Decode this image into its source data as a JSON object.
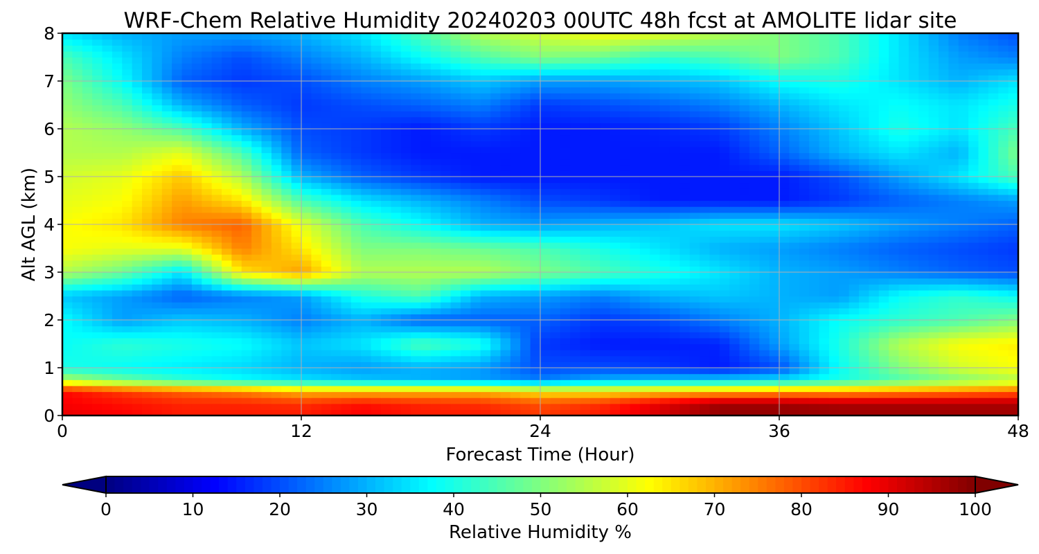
{
  "chart_data": {
    "type": "heatmap",
    "title": "WRF-Chem Relative Humidity 20240203 00UTC 48h fcst at AMOLITE lidar site",
    "xlabel": "Forecast Time (Hour)",
    "ylabel": "Alt AGL (km)",
    "xlim": [
      0,
      48
    ],
    "ylim": [
      0,
      8
    ],
    "xticks": [
      0,
      12,
      24,
      36,
      48
    ],
    "yticks": [
      0,
      1,
      2,
      3,
      4,
      5,
      6,
      7,
      8
    ],
    "grid": true,
    "colormap": "jet",
    "colorbar": {
      "label": "Relative Humidity %",
      "orientation": "horizontal",
      "range": [
        0,
        100
      ],
      "ticks": [
        0,
        10,
        20,
        30,
        40,
        50,
        60,
        70,
        80,
        90,
        100
      ],
      "extend": "both"
    },
    "x": [
      0,
      3,
      6,
      9,
      12,
      15,
      18,
      21,
      24,
      27,
      30,
      33,
      36,
      39,
      42,
      45,
      48
    ],
    "y": [
      0,
      0.25,
      0.5,
      0.75,
      1,
      1.5,
      2,
      2.5,
      3,
      3.5,
      4,
      4.5,
      5,
      5.5,
      6,
      6.5,
      7,
      7.5,
      8
    ],
    "z": [
      [
        90,
        88,
        85,
        85,
        85,
        88,
        85,
        85,
        82,
        85,
        92,
        98,
        98,
        97,
        97,
        97,
        97
      ],
      [
        88,
        86,
        84,
        84,
        83,
        86,
        84,
        83,
        80,
        83,
        90,
        97,
        97,
        96,
        96,
        96,
        96
      ],
      [
        87,
        82,
        78,
        75,
        70,
        70,
        70,
        70,
        65,
        65,
        68,
        70,
        72,
        72,
        74,
        76,
        78
      ],
      [
        55,
        48,
        42,
        38,
        35,
        32,
        30,
        28,
        25,
        30,
        32,
        33,
        35,
        40,
        45,
        50,
        55
      ],
      [
        40,
        38,
        36,
        34,
        30,
        28,
        30,
        28,
        20,
        20,
        18,
        15,
        20,
        38,
        50,
        58,
        62
      ],
      [
        38,
        42,
        40,
        38,
        32,
        35,
        45,
        40,
        18,
        15,
        15,
        16,
        28,
        40,
        55,
        62,
        64
      ],
      [
        38,
        28,
        32,
        30,
        25,
        30,
        22,
        22,
        22,
        18,
        20,
        25,
        30,
        38,
        42,
        45,
        50
      ],
      [
        32,
        28,
        22,
        25,
        28,
        40,
        45,
        30,
        28,
        25,
        30,
        32,
        30,
        28,
        38,
        42,
        38
      ],
      [
        55,
        48,
        35,
        65,
        72,
        55,
        55,
        55,
        50,
        45,
        40,
        35,
        30,
        28,
        25,
        22,
        20
      ],
      [
        62,
        60,
        60,
        75,
        65,
        50,
        50,
        48,
        45,
        40,
        35,
        30,
        28,
        25,
        22,
        20,
        18
      ],
      [
        62,
        65,
        75,
        78,
        60,
        45,
        38,
        30,
        28,
        30,
        32,
        35,
        35,
        32,
        28,
        25,
        22
      ],
      [
        60,
        62,
        72,
        65,
        45,
        35,
        30,
        25,
        20,
        18,
        15,
        15,
        15,
        18,
        22,
        25,
        28
      ],
      [
        58,
        60,
        68,
        55,
        30,
        22,
        18,
        15,
        15,
        15,
        15,
        15,
        15,
        20,
        28,
        35,
        45
      ],
      [
        55,
        55,
        60,
        45,
        22,
        18,
        15,
        15,
        15,
        15,
        15,
        15,
        22,
        30,
        35,
        30,
        50
      ],
      [
        55,
        52,
        45,
        30,
        20,
        18,
        15,
        18,
        15,
        15,
        16,
        18,
        25,
        32,
        40,
        35,
        45
      ],
      [
        52,
        45,
        30,
        22,
        18,
        20,
        22,
        25,
        18,
        20,
        22,
        25,
        30,
        35,
        38,
        35,
        40
      ],
      [
        50,
        38,
        22,
        18,
        20,
        25,
        28,
        32,
        28,
        28,
        30,
        32,
        38,
        40,
        35,
        30,
        35
      ],
      [
        45,
        35,
        25,
        20,
        25,
        30,
        38,
        45,
        50,
        48,
        42,
        45,
        50,
        45,
        35,
        28,
        25
      ],
      [
        35,
        30,
        28,
        28,
        30,
        35,
        45,
        55,
        58,
        62,
        60,
        55,
        50,
        45,
        35,
        25,
        20
      ]
    ]
  }
}
